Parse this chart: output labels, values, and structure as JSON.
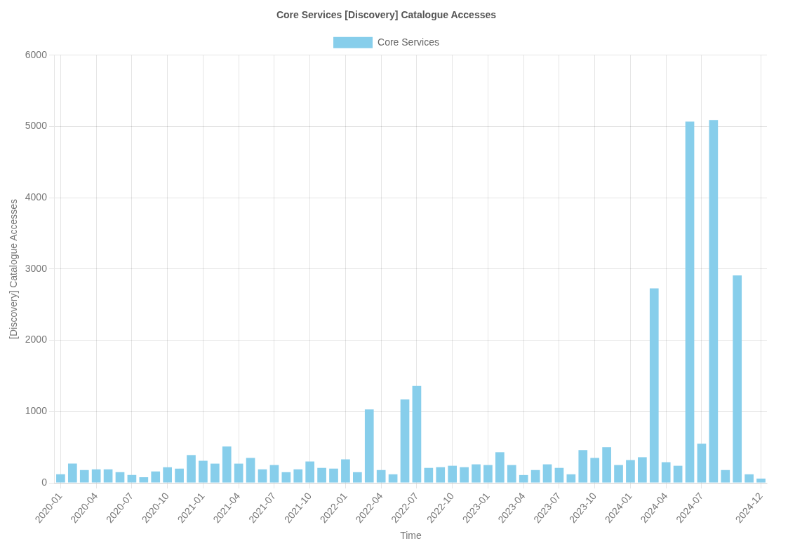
{
  "chart_data": {
    "type": "bar",
    "title": "Core Services [Discovery] Catalogue Accesses",
    "xlabel": "Time",
    "ylabel": "[Discovery] Catalogue Accesses",
    "categories": [
      "2020-01",
      null,
      null,
      "2020-04",
      null,
      null,
      "2020-07",
      null,
      null,
      "2020-10",
      null,
      null,
      "2021-01",
      null,
      null,
      "2021-04",
      null,
      null,
      "2021-07",
      null,
      null,
      "2021-10",
      null,
      null,
      "2022-01",
      null,
      null,
      "2022-04",
      null,
      null,
      "2022-07",
      null,
      null,
      "2022-10",
      null,
      null,
      "2023-01",
      null,
      null,
      "2023-04",
      null,
      null,
      "2023-07",
      null,
      null,
      "2023-10",
      null,
      null,
      "2024-01",
      null,
      null,
      "2024-04",
      null,
      null,
      "2024-07",
      null,
      null,
      null,
      null,
      "2024-12"
    ],
    "series": [
      {
        "name": "Core Services",
        "color": "#87ceeb",
        "values": [
          120,
          270,
          180,
          190,
          190,
          150,
          110,
          80,
          160,
          220,
          200,
          390,
          310,
          270,
          510,
          270,
          350,
          190,
          250,
          150,
          190,
          300,
          210,
          200,
          330,
          150,
          1030,
          180,
          120,
          1170,
          1360,
          210,
          220,
          240,
          220,
          260,
          250,
          430,
          250,
          110,
          180,
          260,
          210,
          120,
          460,
          350,
          500,
          250,
          320,
          360,
          2730,
          290,
          240,
          5070,
          550,
          5090,
          180,
          2910,
          120,
          60
        ]
      }
    ],
    "ylim": [
      0,
      6000
    ],
    "yticks": [
      0,
      1000,
      2000,
      3000,
      4000,
      5000,
      6000
    ],
    "grid": true,
    "legend": "top"
  }
}
